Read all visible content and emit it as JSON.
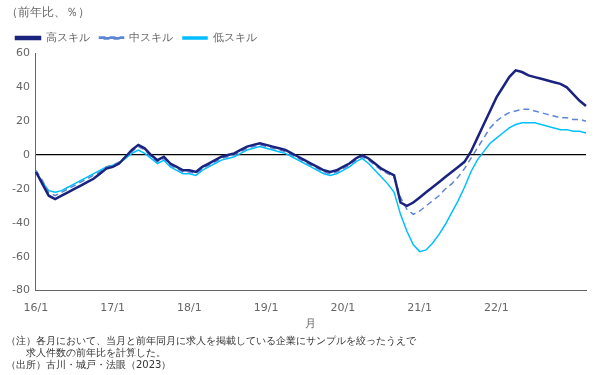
{
  "chart_data": {
    "type": "line",
    "title": "（前年比、％）",
    "xlabel": "月",
    "annotations": [
      "（注）各月において、当月と前年同月に求人を掲載している企業にサンプルを絞ったうえで",
      "　　求人件数の前年比を計算した。",
      "（出所）古川・城戸・法眼（2023）"
    ],
    "categories": [
      "16/1",
      null,
      null,
      null,
      null,
      null,
      null,
      null,
      null,
      null,
      null,
      null,
      "17/1",
      null,
      null,
      null,
      null,
      null,
      null,
      null,
      null,
      null,
      null,
      null,
      "18/1",
      null,
      null,
      null,
      null,
      null,
      null,
      null,
      null,
      null,
      null,
      null,
      "19/1",
      null,
      null,
      null,
      null,
      null,
      null,
      null,
      null,
      null,
      null,
      null,
      "20/1",
      null,
      null,
      null,
      null,
      null,
      null,
      null,
      null,
      null,
      null,
      null,
      "21/1",
      null,
      null,
      null,
      null,
      null,
      null,
      null,
      null,
      null,
      null,
      null,
      "22/1",
      null,
      null,
      null,
      null,
      null,
      null,
      null,
      null,
      null,
      null,
      null,
      null,
      null,
      null
    ],
    "series": [
      {
        "name": "高スキル",
        "color": "#1a237e",
        "line_style": "solid",
        "values": [
          -10,
          -17,
          -24,
          -26,
          -24,
          -22,
          -20,
          -18,
          -16,
          -14,
          -11,
          -8,
          -7,
          -5,
          -1,
          3,
          6,
          4,
          0,
          -3,
          -1,
          -5,
          -7,
          -9,
          -9,
          -10,
          -7,
          -5,
          -3,
          -1,
          0,
          1,
          3,
          5,
          6,
          7,
          6,
          5,
          4,
          3,
          1,
          -1,
          -3,
          -5,
          -7,
          -9,
          -10,
          -9,
          -7,
          -5,
          -2,
          0,
          -2,
          -5,
          -8,
          -10,
          -12,
          -28,
          -30,
          -28,
          -25,
          -22,
          -19,
          -16,
          -13,
          -10,
          -7,
          -4,
          2,
          10,
          18,
          26,
          34,
          40,
          46,
          50,
          49,
          47,
          46,
          45,
          44,
          43,
          42,
          40,
          36,
          32,
          29
        ]
      },
      {
        "name": "中スキル",
        "color": "#5c85d6",
        "line_style": "dashed",
        "values": [
          -9,
          -15,
          -22,
          -24,
          -22,
          -20,
          -18,
          -16,
          -14,
          -12,
          -10,
          -7,
          -6,
          -4,
          -1,
          2,
          5,
          3,
          -1,
          -4,
          -2,
          -6,
          -8,
          -10,
          -10,
          -11,
          -8,
          -6,
          -4,
          -2,
          -1,
          0,
          2,
          4,
          5,
          6,
          5,
          4,
          3,
          2,
          0,
          -2,
          -4,
          -6,
          -8,
          -10,
          -11,
          -10,
          -8,
          -6,
          -3,
          -1,
          -3,
          -6,
          -9,
          -11,
          -13,
          -25,
          -32,
          -35,
          -33,
          -30,
          -27,
          -24,
          -20,
          -17,
          -13,
          -8,
          -2,
          4,
          10,
          16,
          20,
          23,
          25,
          26,
          27,
          27,
          26,
          25,
          24,
          23,
          22,
          22,
          21,
          21,
          20
        ]
      },
      {
        "name": "低スキル",
        "color": "#00bfff",
        "line_style": "solid",
        "values": [
          -10,
          -16,
          -21,
          -22,
          -21,
          -19,
          -17,
          -15,
          -13,
          -11,
          -9,
          -7,
          -6,
          -5,
          -2,
          1,
          3,
          1,
          -2,
          -5,
          -3,
          -7,
          -9,
          -11,
          -11,
          -12,
          -9,
          -7,
          -5,
          -3,
          -2,
          -1,
          1,
          3,
          4,
          5,
          4,
          3,
          2,
          1,
          -1,
          -3,
          -5,
          -7,
          -9,
          -11,
          -12,
          -11,
          -9,
          -7,
          -4,
          -2,
          -5,
          -9,
          -13,
          -17,
          -22,
          -35,
          -45,
          -53,
          -57,
          -56,
          -52,
          -47,
          -41,
          -34,
          -27,
          -19,
          -10,
          -3,
          2,
          7,
          10,
          13,
          16,
          18,
          19,
          19,
          19,
          18,
          17,
          16,
          15,
          15,
          14,
          14,
          13
        ]
      }
    ],
    "ylim": [
      -80,
      60
    ],
    "yticks": [
      -80,
      -60,
      -40,
      -20,
      0,
      20,
      40,
      60
    ],
    "grid": false,
    "legend": "upper left"
  }
}
